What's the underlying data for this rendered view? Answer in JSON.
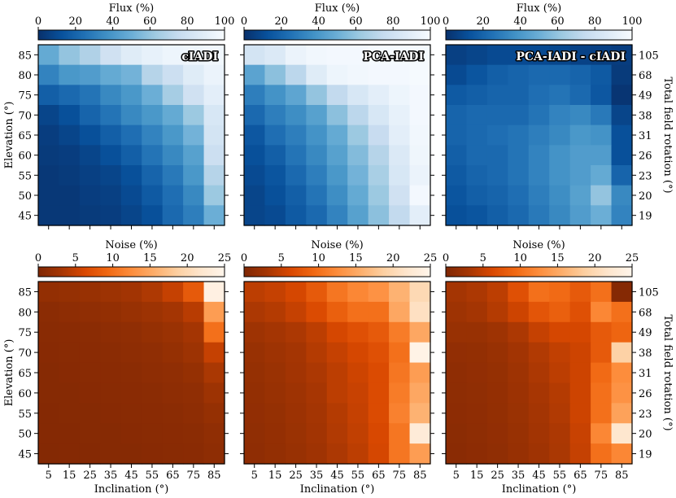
{
  "figure": {
    "row_labels": {
      "elevation": "Elevation (°)",
      "inclination": "Inclination (°)",
      "rotation": "Total field rotation (°)"
    },
    "colorbars": {
      "flux": {
        "label": "Flux (%)",
        "ticks": [
          "0",
          "20",
          "40",
          "60",
          "80",
          "100"
        ],
        "min": 0,
        "max": 100
      },
      "noise": {
        "label": "Noise (%)",
        "ticks": [
          "0",
          "5",
          "10",
          "15",
          "20",
          "25"
        ],
        "min": 0,
        "max": 25
      }
    },
    "colors": {
      "blues": [
        "#08306b",
        "#08519c",
        "#2171b5",
        "#4292c6",
        "#6baed6",
        "#9ecae1",
        "#c6dbef",
        "#deebf7",
        "#f7fbff"
      ],
      "oranges": [
        "#7f2704",
        "#a63603",
        "#d94801",
        "#f16913",
        "#fd8d3c",
        "#fdae6b",
        "#fdd0a2",
        "#fee6ce",
        "#fff5eb"
      ]
    }
  },
  "chart_data": [
    {
      "type": "heatmap",
      "title": "cIADI",
      "colorbar": "flux",
      "cmap": "blues",
      "x": [
        5,
        15,
        25,
        35,
        45,
        55,
        65,
        75,
        85
      ],
      "y": [
        85,
        80,
        75,
        70,
        65,
        60,
        55,
        50,
        45
      ],
      "xlabel": "",
      "ylabel": "Elevation (°)",
      "y2label": "",
      "y2ticks": [],
      "values": [
        [
          48,
          60,
          68,
          80,
          88,
          92,
          95,
          96,
          97
        ],
        [
          32,
          40,
          42,
          48,
          52,
          70,
          78,
          88,
          94
        ],
        [
          18,
          22,
          26,
          34,
          40,
          50,
          65,
          80,
          90
        ],
        [
          8,
          12,
          20,
          26,
          34,
          40,
          48,
          62,
          84
        ],
        [
          5,
          8,
          12,
          18,
          24,
          32,
          40,
          52,
          82
        ],
        [
          4,
          5,
          8,
          12,
          18,
          26,
          34,
          44,
          78
        ],
        [
          3,
          4,
          6,
          8,
          12,
          20,
          28,
          40,
          70
        ],
        [
          3,
          3,
          5,
          6,
          10,
          16,
          24,
          34,
          62
        ],
        [
          3,
          3,
          4,
          5,
          8,
          12,
          22,
          30,
          50
        ]
      ]
    },
    {
      "type": "heatmap",
      "title": "PCA-IADI",
      "colorbar": "flux",
      "cmap": "blues",
      "x": [
        5,
        15,
        25,
        35,
        45,
        55,
        65,
        75,
        85
      ],
      "y": [
        85,
        80,
        75,
        70,
        65,
        60,
        55,
        50,
        45
      ],
      "xlabel": "",
      "ylabel": "",
      "y2label": "",
      "y2ticks": [],
      "values": [
        [
          82,
          86,
          94,
          97,
          98,
          98,
          99,
          99,
          99
        ],
        [
          45,
          58,
          72,
          88,
          95,
          97,
          98,
          98,
          99
        ],
        [
          30,
          38,
          46,
          60,
          74,
          84,
          90,
          95,
          98
        ],
        [
          22,
          30,
          36,
          44,
          58,
          72,
          84,
          92,
          98
        ],
        [
          15,
          24,
          30,
          38,
          48,
          62,
          76,
          90,
          97
        ],
        [
          12,
          18,
          26,
          34,
          44,
          56,
          70,
          86,
          96
        ],
        [
          10,
          14,
          22,
          30,
          40,
          52,
          66,
          84,
          94
        ],
        [
          8,
          12,
          18,
          26,
          36,
          48,
          62,
          80,
          98
        ],
        [
          8,
          10,
          16,
          22,
          32,
          44,
          58,
          74,
          90
        ]
      ]
    },
    {
      "type": "heatmap",
      "title": "PCA-IADI - cIADI",
      "colorbar": "flux",
      "cmap": "blues",
      "x": [
        5,
        15,
        25,
        35,
        45,
        55,
        65,
        75,
        85
      ],
      "y": [
        85,
        80,
        75,
        70,
        65,
        60,
        55,
        50,
        45
      ],
      "xlabel": "",
      "ylabel": "",
      "y2label": "Total field rotation (°)",
      "y2ticks": [
        "105",
        "68",
        "49",
        "38",
        "31",
        "26",
        "23",
        "20",
        "19"
      ],
      "values": [
        [
          6,
          8,
          10,
          10,
          10,
          9,
          7,
          6,
          5
        ],
        [
          10,
          14,
          18,
          20,
          22,
          22,
          20,
          16,
          4
        ],
        [
          16,
          18,
          20,
          20,
          24,
          26,
          22,
          15,
          2
        ],
        [
          20,
          22,
          22,
          22,
          26,
          32,
          34,
          28,
          8
        ],
        [
          20,
          22,
          24,
          26,
          30,
          34,
          40,
          38,
          12
        ],
        [
          18,
          22,
          22,
          26,
          32,
          38,
          42,
          42,
          12
        ],
        [
          16,
          20,
          22,
          26,
          32,
          38,
          42,
          48,
          20
        ],
        [
          14,
          18,
          20,
          24,
          30,
          36,
          44,
          60,
          34
        ],
        [
          12,
          14,
          18,
          22,
          28,
          34,
          42,
          50,
          32
        ]
      ]
    },
    {
      "type": "heatmap",
      "title": "",
      "colorbar": "noise",
      "cmap": "oranges",
      "x": [
        5,
        15,
        25,
        35,
        45,
        55,
        65,
        75,
        85
      ],
      "y": [
        85,
        80,
        75,
        70,
        65,
        60,
        55,
        50,
        45
      ],
      "xlabel": "Inclination (°)",
      "ylabel": "Elevation (°)",
      "y2label": "",
      "y2ticks": [],
      "values": [
        [
          1.6,
          1.8,
          2.0,
          2.4,
          2.8,
          3.6,
          5.0,
          8.0,
          24.0
        ],
        [
          1.0,
          1.2,
          1.4,
          1.6,
          2.0,
          2.4,
          3.0,
          4.2,
          14.0
        ],
        [
          0.8,
          0.9,
          1.0,
          1.2,
          1.4,
          1.8,
          2.2,
          3.0,
          10.0
        ],
        [
          0.7,
          0.8,
          0.9,
          1.0,
          1.2,
          1.4,
          1.8,
          2.4,
          5.0
        ],
        [
          0.6,
          0.7,
          0.8,
          0.9,
          1.0,
          1.2,
          1.4,
          1.8,
          3.4
        ],
        [
          0.6,
          0.6,
          0.7,
          0.8,
          0.9,
          1.0,
          1.2,
          1.4,
          2.4
        ],
        [
          0.5,
          0.6,
          0.6,
          0.7,
          0.8,
          0.9,
          1.0,
          1.2,
          1.8
        ],
        [
          0.5,
          0.5,
          0.6,
          0.6,
          0.7,
          0.8,
          0.9,
          1.0,
          1.4
        ],
        [
          0.4,
          0.5,
          0.5,
          0.6,
          0.6,
          0.7,
          0.8,
          0.9,
          1.2
        ]
      ]
    },
    {
      "type": "heatmap",
      "title": "",
      "colorbar": "noise",
      "cmap": "oranges",
      "x": [
        5,
        15,
        25,
        35,
        45,
        55,
        65,
        75,
        85
      ],
      "y": [
        85,
        80,
        75,
        70,
        65,
        60,
        55,
        50,
        45
      ],
      "xlabel": "Inclination (°)",
      "ylabel": "",
      "y2label": "",
      "y2ticks": [],
      "values": [
        [
          4.5,
          5.0,
          6.0,
          8.0,
          10.5,
          12.0,
          13.0,
          16.0,
          20.0
        ],
        [
          3.5,
          4.0,
          5.0,
          6.5,
          8.5,
          10.0,
          10.0,
          15.0,
          21.0
        ],
        [
          2.5,
          3.0,
          3.5,
          4.5,
          6.0,
          7.0,
          8.0,
          11.0,
          15.0
        ],
        [
          2.0,
          2.5,
          3.0,
          4.0,
          5.0,
          6.0,
          7.0,
          10.0,
          24.5
        ],
        [
          1.8,
          2.2,
          2.8,
          3.5,
          4.5,
          5.5,
          6.5,
          10.5,
          14.0
        ],
        [
          1.6,
          2.0,
          2.5,
          3.2,
          4.5,
          5.2,
          6.5,
          11.0,
          15.0
        ],
        [
          1.5,
          1.8,
          2.3,
          3.0,
          4.0,
          5.0,
          6.5,
          11.5,
          16.0
        ],
        [
          1.4,
          1.7,
          2.2,
          2.8,
          3.8,
          4.8,
          6.2,
          10.5,
          23.0
        ],
        [
          1.3,
          1.6,
          2.0,
          2.6,
          3.5,
          4.5,
          6.0,
          10.5,
          14.0
        ]
      ]
    },
    {
      "type": "heatmap",
      "title": "",
      "colorbar": "noise",
      "cmap": "oranges",
      "x": [
        5,
        15,
        25,
        35,
        45,
        55,
        65,
        75,
        85
      ],
      "y": [
        85,
        80,
        75,
        70,
        65,
        60,
        55,
        50,
        45
      ],
      "xlabel": "Inclination (°)",
      "ylabel": "",
      "y2label": "Total field rotation (°)",
      "y2ticks": [
        "105",
        "68",
        "49",
        "38",
        "31",
        "26",
        "23",
        "20",
        "19"
      ],
      "values": [
        [
          3.0,
          3.5,
          4.5,
          7.0,
          10.0,
          9.5,
          8.0,
          10.0,
          0.5
        ],
        [
          2.5,
          3.0,
          4.0,
          5.5,
          7.5,
          8.5,
          7.0,
          12.0,
          10.0
        ],
        [
          2.0,
          2.0,
          2.5,
          3.5,
          5.0,
          6.0,
          6.0,
          8.0,
          9.0
        ],
        [
          1.5,
          1.6,
          2.0,
          2.8,
          3.8,
          4.8,
          5.5,
          8.0,
          19.0
        ],
        [
          1.3,
          1.5,
          1.8,
          2.5,
          3.5,
          4.5,
          5.5,
          9.5,
          12.5
        ],
        [
          1.2,
          1.4,
          1.7,
          2.3,
          3.2,
          4.0,
          5.5,
          10.0,
          13.0
        ],
        [
          1.1,
          1.3,
          1.6,
          2.2,
          3.0,
          3.8,
          5.5,
          10.0,
          14.5
        ],
        [
          1.0,
          1.2,
          1.5,
          2.0,
          2.8,
          3.5,
          5.2,
          12.0,
          22.0
        ],
        [
          0.9,
          1.1,
          1.4,
          1.9,
          2.6,
          3.4,
          5.0,
          10.0,
          12.0
        ]
      ]
    }
  ]
}
